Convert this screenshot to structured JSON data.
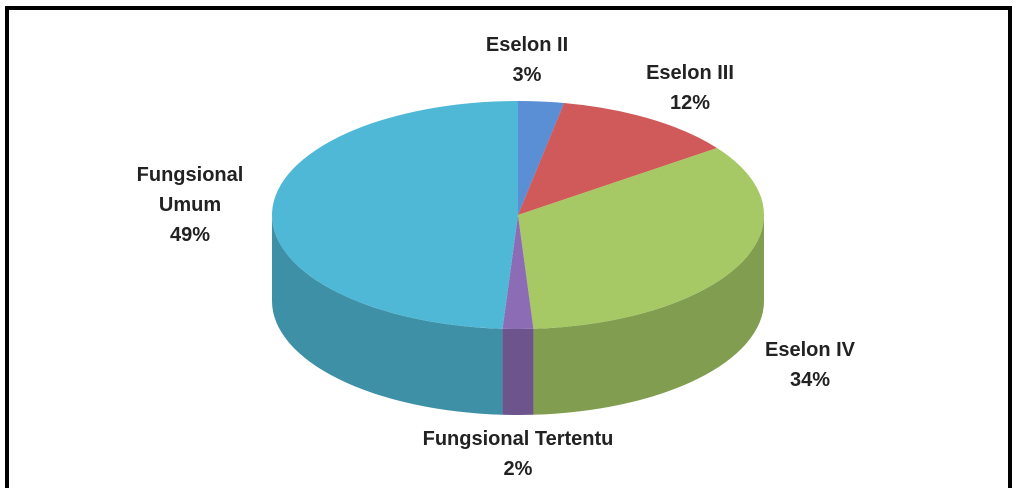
{
  "chart_data": {
    "type": "pie",
    "categories": [
      "Eselon II",
      "Eselon III",
      "Eselon IV",
      "Fungsional Tertentu",
      "Fungsional Umum"
    ],
    "values": [
      3,
      12,
      34,
      2,
      49
    ],
    "value_labels": [
      "3%",
      "12%",
      "34%",
      "2%",
      "49%"
    ],
    "colors": [
      "#5a8fd6",
      "#d05a5a",
      "#a6c965",
      "#8c6cb5",
      "#4fb8d6"
    ]
  }
}
